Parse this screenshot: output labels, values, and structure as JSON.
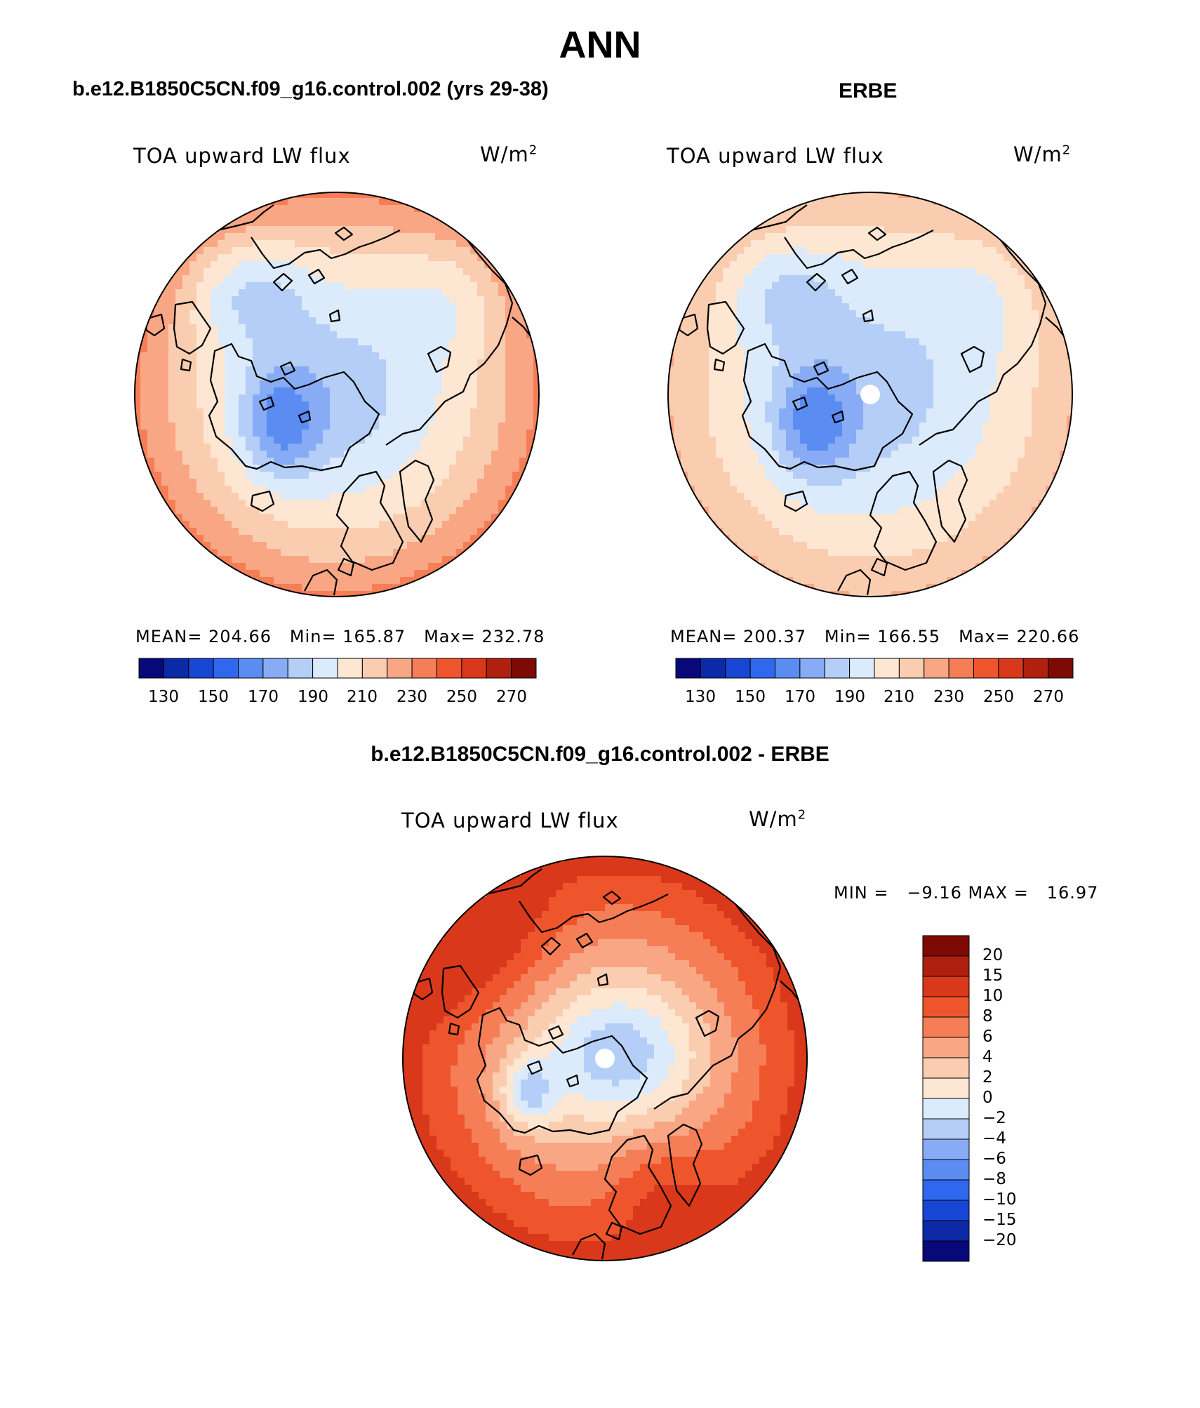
{
  "title": "ANN",
  "panels": [
    {
      "header": "b.e12.B1850C5CN.f09_g16.control.002 (yrs 29-38)",
      "variable": "TOA upward LW flux",
      "units_base": "W/m",
      "units_exp": "2",
      "stats": {
        "mean_label": "MEAN=",
        "mean": "204.66",
        "min_label": "Min=",
        "min": "165.87",
        "max_label": "Max=",
        "max": "232.78"
      },
      "colorbar": {
        "ticks": [
          "130",
          "150",
          "170",
          "190",
          "210",
          "230",
          "250",
          "270"
        ]
      },
      "field": {
        "min": 165.87,
        "max": 232.78,
        "greenland_min": 166,
        "pole_value": 185,
        "land_cold": 192
      }
    },
    {
      "header": "ERBE",
      "variable": "TOA upward LW flux",
      "units_base": "W/m",
      "units_exp": "2",
      "stats": {
        "mean_label": "MEAN=",
        "mean": "200.37",
        "min_label": "Min=",
        "min": "166.55",
        "max_label": "Max=",
        "max": "220.66"
      },
      "colorbar": {
        "ticks": [
          "130",
          "150",
          "170",
          "190",
          "210",
          "230",
          "250",
          "270"
        ]
      },
      "field": {
        "min": 166.55,
        "max": 220.66,
        "greenland_min": 167,
        "pole_value": 185,
        "land_cold": 190,
        "missing_pole": true
      }
    }
  ],
  "difference": {
    "header": "b.e12.B1850C5CN.f09_g16.control.002 - ERBE",
    "variable": "TOA upward LW flux",
    "units_base": "W/m",
    "units_exp": "2",
    "minmax_text": "MIN =   −9.16 MAX =   16.97",
    "colorbar": {
      "ticks": [
        "20",
        "15",
        "10",
        "8",
        "6",
        "4",
        "2",
        "0",
        "−2",
        "−4",
        "−6",
        "−8",
        "−10",
        "−15",
        "−20"
      ]
    },
    "field": {
      "min": -9.16,
      "max": 16.97
    }
  },
  "colors": {
    "abs_palette": [
      "#08087a",
      "#0c2aa8",
      "#1846d4",
      "#2f67ee",
      "#5b8cf2",
      "#87acf5",
      "#b4cef7",
      "#dcebfb",
      "#fde6d2",
      "#fbcdb0",
      "#f9a684",
      "#f57e57",
      "#ee552c",
      "#d9381a",
      "#b0200e",
      "#7e0a05"
    ],
    "abs_levels": [
      130,
      140,
      150,
      160,
      170,
      180,
      190,
      200,
      210,
      220,
      230,
      240,
      250,
      260,
      270
    ],
    "diff_palette": [
      "#08087a",
      "#0c2aa8",
      "#1846d4",
      "#2f67ee",
      "#5b8cf2",
      "#87acf5",
      "#b4cef7",
      "#dcebfb",
      "#fde6d2",
      "#fbcdb0",
      "#f9a684",
      "#f57e57",
      "#ee552c",
      "#d9381a",
      "#b0200e",
      "#7e0a05"
    ],
    "diff_levels": [
      -20,
      -15,
      -10,
      -8,
      -6,
      -4,
      -2,
      0,
      2,
      4,
      6,
      8,
      10,
      15,
      20
    ]
  }
}
